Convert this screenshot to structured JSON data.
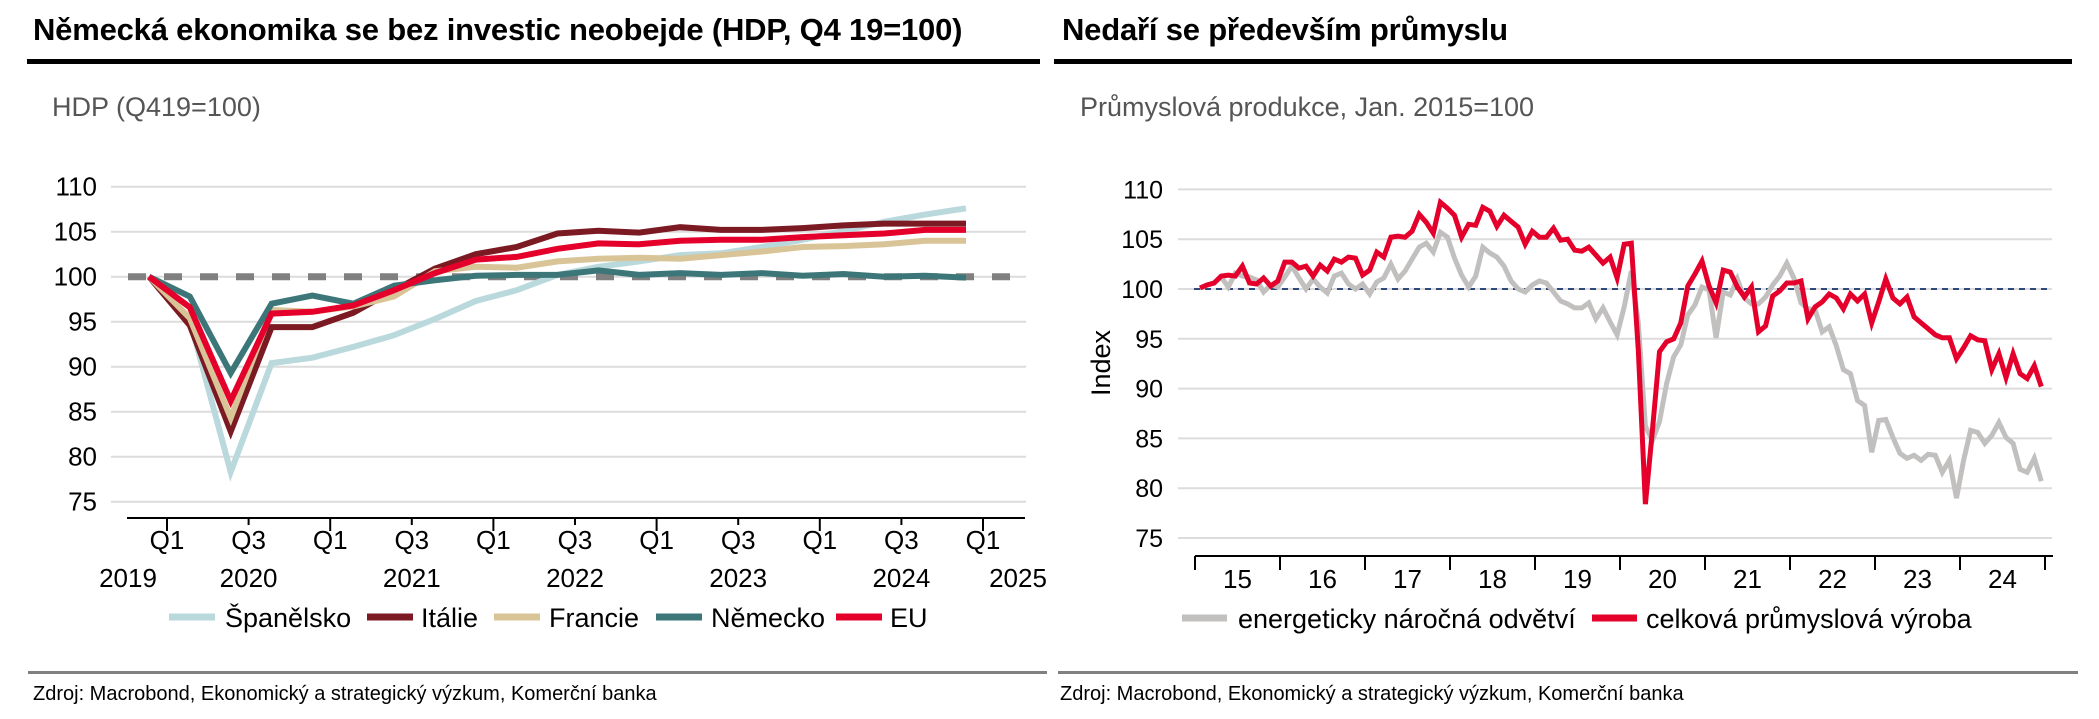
{
  "panels": [
    {
      "title": "Německá ekonomika se bez investic neobejde (HDP, Q4 19=100)",
      "subtitle": "HDP (Q419=100)",
      "source": "Zdroj: Macrobond, Ekonomický a strategický výzkum, Komerční banka"
    },
    {
      "title": "Nedaří se především průmyslu",
      "subtitle": "Průmyslová produkce, Jan. 2015=100",
      "source": "Zdroj: Macrobond, Ekonomický a strategický výzkum, Komerční banka"
    }
  ],
  "chart_data": [
    {
      "type": "line",
      "title": "Německá ekonomika se bez investic neobejde (HDP, Q4 19=100)",
      "subtitle": "HDP (Q419=100)",
      "xlabel": "",
      "ylabel": "",
      "ylim": [
        73,
        111
      ],
      "yticks": [
        75,
        80,
        85,
        90,
        95,
        100,
        105,
        110
      ],
      "grid": true,
      "legend": "bottom",
      "reference_line": {
        "y": 100,
        "style": "dashed",
        "color": "#808080"
      },
      "x": [
        "Q4 2019",
        "Q1 2020",
        "Q2 2020",
        "Q3 2020",
        "Q4 2020",
        "Q1 2021",
        "Q2 2021",
        "Q3 2021",
        "Q4 2021",
        "Q1 2022",
        "Q2 2022",
        "Q3 2022",
        "Q4 2022",
        "Q1 2023",
        "Q2 2023",
        "Q3 2023",
        "Q4 2023",
        "Q1 2024",
        "Q2 2024",
        "Q3 2024",
        "Q4 2024"
      ],
      "xticks": [
        {
          "q": "Q1",
          "year": "2019"
        },
        {
          "q": "Q3",
          "year": "2020"
        },
        {
          "q": "Q1",
          "year": ""
        },
        {
          "q": "Q3",
          "year": "2021"
        },
        {
          "q": "Q1",
          "year": ""
        },
        {
          "q": "Q3",
          "year": "2022"
        },
        {
          "q": "Q1",
          "year": ""
        },
        {
          "q": "Q3",
          "year": "2023"
        },
        {
          "q": "Q1",
          "year": ""
        },
        {
          "q": "Q3",
          "year": "2024"
        },
        {
          "q": "Q1",
          "year": "2025"
        }
      ],
      "series": [
        {
          "name": "Španělsko",
          "color": "#b9d9dd",
          "values": [
            100,
            95.2,
            78.3,
            90.4,
            91.0,
            92.2,
            93.5,
            95.3,
            97.3,
            98.5,
            100.2,
            101.1,
            101.7,
            102.4,
            102.6,
            103.3,
            104.1,
            105.1,
            106.1,
            106.9,
            107.6
          ]
        },
        {
          "name": "Itálie",
          "color": "#7b1a22",
          "values": [
            100,
            94.6,
            82.8,
            94.4,
            94.4,
            96.0,
            98.5,
            100.9,
            102.5,
            103.3,
            104.8,
            105.1,
            104.9,
            105.5,
            105.2,
            105.2,
            105.4,
            105.7,
            105.9,
            105.9,
            105.9
          ]
        },
        {
          "name": "Francie",
          "color": "#d9c497",
          "values": [
            100,
            95.4,
            84.3,
            96.3,
            96.1,
            96.7,
            97.8,
            100.6,
            101.1,
            101.0,
            101.7,
            102.0,
            102.1,
            102.0,
            102.4,
            102.8,
            103.3,
            103.4,
            103.6,
            104.0,
            104.0
          ]
        },
        {
          "name": "Německo",
          "color": "#3d7679",
          "values": [
            100,
            97.8,
            89.3,
            97.0,
            97.9,
            97.0,
            99.0,
            99.6,
            100.1,
            100.2,
            100.2,
            100.7,
            100.2,
            100.4,
            100.2,
            100.4,
            100.1,
            100.3,
            100.0,
            100.1,
            99.9
          ]
        },
        {
          "name": "EU",
          "color": "#e4002b",
          "values": [
            100,
            96.6,
            86.2,
            95.9,
            96.1,
            96.8,
            98.5,
            100.4,
            101.9,
            102.2,
            103.1,
            103.7,
            103.6,
            104.0,
            104.1,
            104.1,
            104.4,
            104.6,
            104.8,
            105.2,
            105.2
          ]
        }
      ]
    },
    {
      "type": "line",
      "title": "Nedaří se především průmyslu",
      "subtitle": "Průmyslová produkce, Jan. 2015=100",
      "xlabel": "",
      "ylabel": "Index",
      "ylim": [
        73,
        112
      ],
      "yticks": [
        75,
        80,
        85,
        90,
        95,
        100,
        105,
        110
      ],
      "grid": true,
      "legend": "bottom",
      "reference_line": {
        "y": 100,
        "style": "dashed",
        "color": "#2f4a7a"
      },
      "x_start": "2015-01",
      "x_frequency": "monthly",
      "xticks": [
        "15",
        "16",
        "17",
        "18",
        "19",
        "20",
        "21",
        "22",
        "23",
        "24"
      ],
      "series": [
        {
          "name": "energeticky náročná odvětví",
          "color": "#c2bfbf",
          "values": [
            100.1,
            100.4,
            100.6,
            101.2,
            100.2,
            101.6,
            101.3,
            101.2,
            100.9,
            99.7,
            100.4,
            100.2,
            101.2,
            102.3,
            101.1,
            100.0,
            101.0,
            100.2,
            99.6,
            101.3,
            101.6,
            100.5,
            100.0,
            100.5,
            99.5,
            100.7,
            101.1,
            102.5,
            101.0,
            101.8,
            103.0,
            104.2,
            104.6,
            103.7,
            105.7,
            105.2,
            103.1,
            101.4,
            100.2,
            101.3,
            104.2,
            103.6,
            103.2,
            102.3,
            100.8,
            100.0,
            99.7,
            100.4,
            100.8,
            100.6,
            99.7,
            98.8,
            98.5,
            98.1,
            98.1,
            98.6,
            97.0,
            98.1,
            96.7,
            95.4,
            98.2,
            101.8,
            96.6,
            86.2,
            84.8,
            86.7,
            90.5,
            93.2,
            94.4,
            97.4,
            98.4,
            100.2,
            99.9,
            95.1,
            99.7,
            99.4,
            101.0,
            99.1,
            98.5,
            98.5,
            99.2,
            100.4,
            101.3,
            102.6,
            101.1,
            98.6,
            98.0,
            97.9,
            95.7,
            96.2,
            94.3,
            91.9,
            91.5,
            88.8,
            88.3,
            83.6,
            86.8,
            86.9,
            85.1,
            83.5,
            83.0,
            83.3,
            82.8,
            83.4,
            83.3,
            81.6,
            82.8,
            79.0,
            82.8,
            85.8,
            85.6,
            84.5,
            85.3,
            86.6,
            85.1,
            84.5,
            81.9,
            81.6,
            83.0,
            80.7
          ]
        },
        {
          "name": "celková průmyslová výroba",
          "color": "#e4002b",
          "values": [
            100.1,
            100.4,
            100.6,
            101.3,
            101.4,
            101.3,
            102.3,
            100.6,
            100.5,
            101.1,
            100.3,
            100.8,
            102.7,
            102.7,
            102.1,
            102.3,
            101.3,
            102.4,
            101.8,
            103.0,
            102.7,
            103.2,
            103.1,
            101.4,
            101.9,
            103.7,
            103.2,
            105.2,
            105.3,
            105.2,
            105.8,
            107.5,
            106.7,
            105.6,
            108.7,
            108.1,
            107.4,
            105.2,
            106.5,
            106.4,
            108.2,
            107.8,
            106.3,
            107.4,
            106.8,
            106.2,
            104.5,
            105.8,
            105.2,
            105.2,
            106.1,
            104.9,
            105.0,
            103.9,
            103.8,
            104.2,
            103.4,
            102.6,
            103.2,
            101.1,
            104.5,
            104.6,
            93.9,
            78.4,
            85.9,
            93.7,
            94.7,
            95.0,
            96.6,
            100.3,
            101.5,
            102.8,
            100.3,
            98.6,
            101.9,
            101.7,
            100.2,
            99.2,
            100.2,
            95.7,
            96.3,
            99.3,
            99.8,
            100.6,
            100.6,
            100.8,
            97.0,
            98.2,
            98.7,
            99.5,
            99.1,
            98.0,
            99.5,
            98.8,
            99.5,
            96.6,
            98.7,
            101.0,
            99.1,
            98.5,
            99.2,
            97.2,
            96.6,
            96.0,
            95.4,
            95.1,
            95.1,
            93.0,
            94.1,
            95.3,
            94.9,
            94.8,
            91.9,
            93.5,
            91.1,
            93.5,
            91.5,
            91.0,
            92.3,
            90.2
          ]
        }
      ]
    }
  ]
}
